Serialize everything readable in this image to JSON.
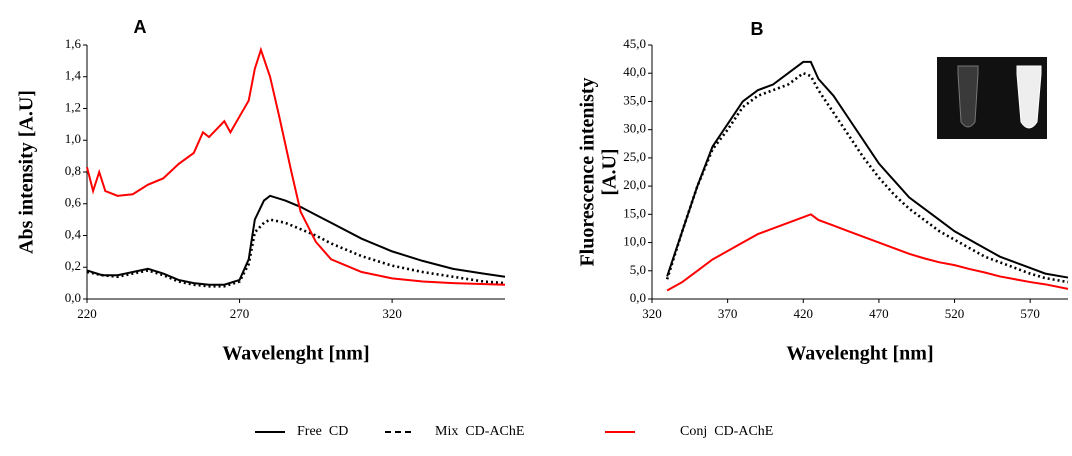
{
  "chart_data": [
    {
      "type": "line",
      "panel_label": "A",
      "ylabel": "Abs intensity [A.U]",
      "xlabel": "Wavelenght [nm]",
      "xlim": [
        220,
        357
      ],
      "xticks": [
        220,
        270,
        320
      ],
      "ylim": [
        0,
        1.6
      ],
      "yticks": [
        {
          "value": 0,
          "label": "0,0"
        },
        {
          "value": 0.2,
          "label": "0,2"
        },
        {
          "value": 0.4,
          "label": "0,4"
        },
        {
          "value": 0.6,
          "label": "0,6"
        },
        {
          "value": 0.8,
          "label": "0,8"
        },
        {
          "value": 1.0,
          "label": "1,0"
        },
        {
          "value": 1.2,
          "label": "1,2"
        },
        {
          "value": 1.4,
          "label": "1,4"
        },
        {
          "value": 1.6,
          "label": "1,6"
        }
      ],
      "series": [
        {
          "name": "Free  CD",
          "color": "#000000",
          "style": "solid",
          "x": [
            220,
            225,
            230,
            235,
            240,
            245,
            250,
            255,
            260,
            265,
            270,
            273,
            275,
            278,
            280,
            285,
            290,
            295,
            300,
            310,
            320,
            330,
            340,
            350,
            357
          ],
          "values": [
            0.18,
            0.15,
            0.15,
            0.17,
            0.19,
            0.16,
            0.12,
            0.1,
            0.09,
            0.09,
            0.12,
            0.25,
            0.5,
            0.62,
            0.65,
            0.62,
            0.58,
            0.53,
            0.48,
            0.38,
            0.3,
            0.24,
            0.19,
            0.16,
            0.14
          ]
        },
        {
          "name": "Mix  CD-AChE",
          "color": "#000000",
          "style": "dotted",
          "x": [
            220,
            225,
            230,
            235,
            240,
            245,
            250,
            255,
            260,
            265,
            270,
            273,
            275,
            278,
            280,
            285,
            290,
            295,
            300,
            310,
            320,
            330,
            340,
            350,
            357
          ],
          "values": [
            0.17,
            0.15,
            0.14,
            0.16,
            0.18,
            0.15,
            0.11,
            0.09,
            0.08,
            0.08,
            0.11,
            0.22,
            0.42,
            0.48,
            0.5,
            0.48,
            0.44,
            0.4,
            0.35,
            0.27,
            0.21,
            0.17,
            0.14,
            0.11,
            0.1
          ]
        },
        {
          "name": "Conj  CD-AChE",
          "color": "#ff0000",
          "style": "solid",
          "x": [
            220,
            222,
            224,
            226,
            230,
            235,
            240,
            245,
            250,
            255,
            258,
            260,
            263,
            265,
            267,
            270,
            273,
            275,
            277,
            280,
            283,
            287,
            290,
            295,
            300,
            310,
            320,
            330,
            340,
            357
          ],
          "values": [
            0.83,
            0.68,
            0.8,
            0.68,
            0.65,
            0.66,
            0.72,
            0.76,
            0.85,
            0.92,
            1.05,
            1.02,
            1.08,
            1.12,
            1.05,
            1.15,
            1.25,
            1.45,
            1.57,
            1.4,
            1.15,
            0.8,
            0.55,
            0.36,
            0.25,
            0.17,
            0.13,
            0.11,
            0.1,
            0.09
          ]
        }
      ]
    },
    {
      "type": "line",
      "panel_label": "B",
      "ylabel": [
        "Fluorescence intenisty",
        "[A.U]"
      ],
      "xlabel": "Wavelenght [nm]",
      "xlim": [
        320,
        595
      ],
      "xticks": [
        320,
        370,
        420,
        470,
        520,
        570
      ],
      "ylim": [
        0,
        45
      ],
      "yticks": [
        {
          "value": 0,
          "label": "0,0"
        },
        {
          "value": 5,
          "label": "5,0"
        },
        {
          "value": 10,
          "label": "10,0"
        },
        {
          "value": 15,
          "label": "15,0"
        },
        {
          "value": 20,
          "label": "20,0"
        },
        {
          "value": 25,
          "label": "25,0"
        },
        {
          "value": 30,
          "label": "30,0"
        },
        {
          "value": 35,
          "label": "35,0"
        },
        {
          "value": 40,
          "label": "40,0"
        },
        {
          "value": 45,
          "label": "45,0"
        }
      ],
      "series": [
        {
          "color": "#000000",
          "style": "solid",
          "x": [
            330,
            340,
            350,
            360,
            370,
            380,
            390,
            400,
            410,
            420,
            425,
            430,
            440,
            450,
            460,
            470,
            480,
            490,
            500,
            510,
            520,
            530,
            540,
            550,
            560,
            570,
            580,
            595
          ],
          "values": [
            4,
            12,
            20,
            27,
            31,
            35,
            37,
            38,
            40,
            42,
            42,
            39,
            36,
            32,
            28,
            24,
            21,
            18,
            16,
            14,
            12,
            10.5,
            9,
            7.5,
            6.5,
            5.5,
            4.5,
            3.8
          ]
        },
        {
          "color": "#000000",
          "style": "dotted",
          "x": [
            330,
            340,
            350,
            360,
            370,
            380,
            390,
            400,
            410,
            420,
            425,
            430,
            440,
            450,
            460,
            470,
            480,
            490,
            500,
            510,
            520,
            530,
            540,
            550,
            560,
            570,
            580,
            595
          ],
          "values": [
            3.5,
            12,
            20,
            26.5,
            30,
            34,
            36,
            37,
            38,
            40,
            39.5,
            37,
            33,
            29,
            25,
            21.5,
            18.5,
            16,
            14,
            12,
            10.5,
            9,
            7.5,
            6.5,
            5.5,
            4.5,
            3.7,
            3
          ]
        },
        {
          "color": "#ff0000",
          "style": "solid",
          "x": [
            330,
            340,
            350,
            360,
            370,
            380,
            390,
            400,
            410,
            420,
            425,
            430,
            440,
            450,
            460,
            470,
            480,
            490,
            500,
            510,
            520,
            530,
            540,
            550,
            560,
            570,
            580,
            595
          ],
          "values": [
            1.5,
            3,
            5,
            7,
            8.5,
            10,
            11.5,
            12.5,
            13.5,
            14.5,
            15,
            14,
            13,
            12,
            11,
            10,
            9,
            8,
            7.2,
            6.5,
            6,
            5.3,
            4.7,
            4,
            3.5,
            3,
            2.6,
            1.8
          ]
        }
      ]
    }
  ]
}
